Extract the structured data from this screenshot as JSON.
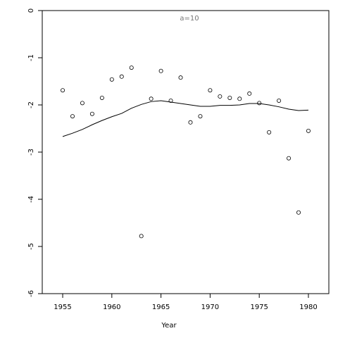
{
  "chart_data": {
    "type": "scatter",
    "annotation": "a=10",
    "x_label": "Year",
    "x": [
      1955,
      1956,
      1957,
      1958,
      1959,
      1960,
      1961,
      1962,
      1963,
      1964,
      1965,
      1966,
      1967,
      1968,
      1969,
      1970,
      1971,
      1972,
      1973,
      1974,
      1975,
      1976,
      1977,
      1978,
      1979,
      1980
    ],
    "series": [
      {
        "style": "points",
        "color": "#000000",
        "values": [
          -1.69,
          -2.24,
          -1.96,
          -2.19,
          -1.85,
          -1.46,
          -1.4,
          -1.21,
          -4.78,
          -1.87,
          -1.28,
          -1.91,
          -1.42,
          -2.37,
          -2.24,
          -1.69,
          -1.82,
          -1.85,
          -1.87,
          -1.76,
          -1.96,
          -2.58,
          -1.91,
          -3.13,
          -4.28,
          -2.55
        ]
      },
      {
        "style": "line",
        "color": "#000000",
        "values": [
          -2.67,
          -2.6,
          -2.52,
          -2.42,
          -2.33,
          -2.25,
          -2.18,
          -2.07,
          -1.99,
          -1.93,
          -1.91,
          -1.94,
          -1.97,
          -2.0,
          -2.03,
          -2.03,
          -2.01,
          -2.01,
          -2.0,
          -1.97,
          -1.97,
          -2.0,
          -2.04,
          -2.09,
          -2.12,
          -2.11
        ]
      }
    ],
    "xlim": [
      1952.92,
      1982.08
    ],
    "xticks": [
      1955,
      1960,
      1965,
      1970,
      1975,
      1980
    ],
    "ylim": [
      -6,
      0
    ],
    "yticks": [
      0,
      -1,
      -2,
      -3,
      -4,
      -5,
      -6
    ]
  }
}
